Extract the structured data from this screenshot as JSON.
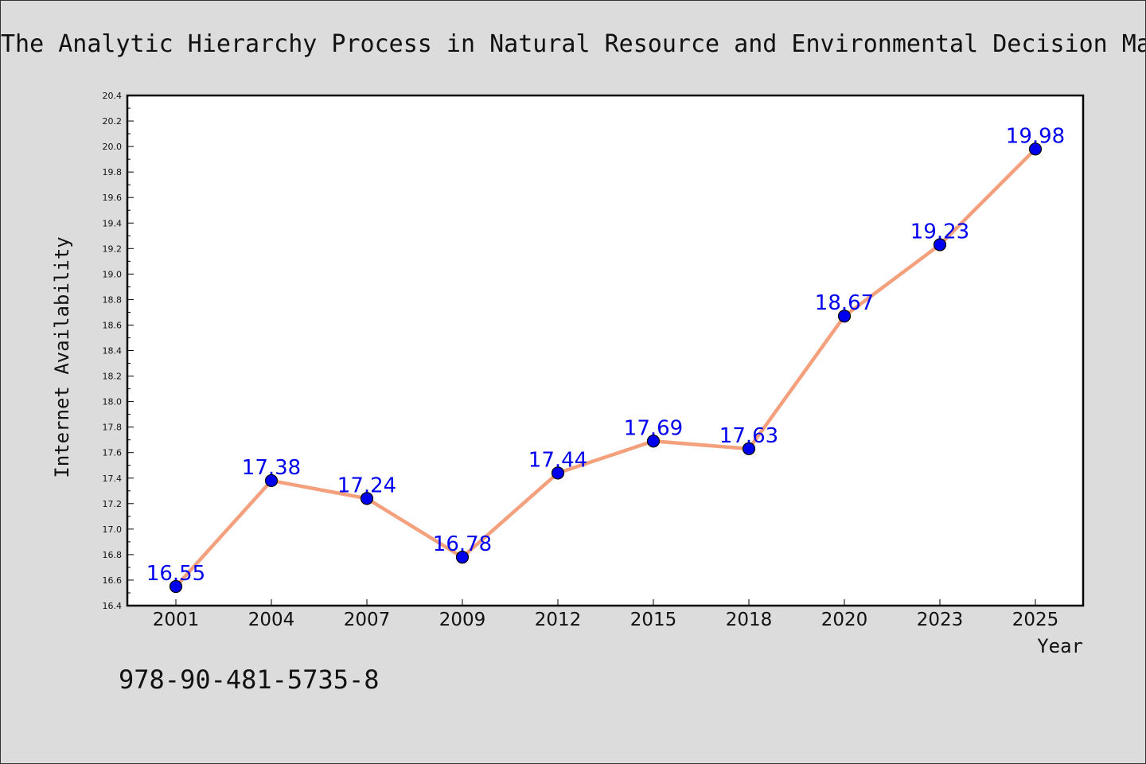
{
  "chart_data": {
    "type": "line",
    "title": "The Analytic Hierarchy Process in Natural Resource and Environmental Decision Ma",
    "xlabel": "Year",
    "ylabel": "Internet Availability",
    "x": [
      "2001",
      "2004",
      "2007",
      "2009",
      "2012",
      "2015",
      "2018",
      "2020",
      "2023",
      "2025"
    ],
    "series": [
      {
        "values": [
          16.55,
          17.38,
          17.24,
          16.78,
          17.44,
          17.69,
          17.63,
          18.67,
          19.23,
          19.98
        ],
        "data_labels": [
          "16.55",
          "17.38",
          "17.24",
          "16.78",
          "17.44",
          "17.69",
          "17.63",
          "18.67",
          "19.23",
          "19.98"
        ]
      }
    ],
    "ylim": [
      16.4,
      20.4
    ],
    "yticks": [
      "16.4",
      "16.6",
      "16.8",
      "17.0",
      "17.2",
      "17.4",
      "17.6",
      "17.8",
      "18.0",
      "18.2",
      "18.4",
      "18.6",
      "18.8",
      "19.0",
      "19.2",
      "19.4",
      "19.6",
      "19.8",
      "20.0",
      "20.2",
      "20.4"
    ],
    "grid": false,
    "legend": "none",
    "colors": {
      "line": "#f4a07c",
      "marker": "#0000ee",
      "data_label": "#0000ee",
      "background": "#dcdcdc",
      "plot_background": "#ffffff"
    }
  },
  "annotation": "978-90-481-5735-8"
}
